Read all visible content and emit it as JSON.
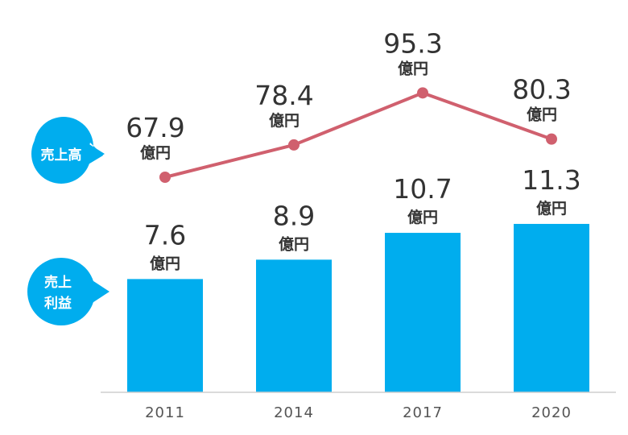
{
  "chart_data": {
    "type": "bar+line",
    "categories": [
      "2011",
      "2014",
      "2017",
      "2020"
    ],
    "unit": "億円",
    "series": [
      {
        "name": "売上高",
        "type": "line",
        "color": "#d0606e",
        "values": [
          67.9,
          78.4,
          95.3,
          80.3
        ],
        "labels": [
          "67.9",
          "78.4",
          "95.3",
          "80.3"
        ]
      },
      {
        "name": "売上利益",
        "name_lines": [
          "売上",
          "利益"
        ],
        "type": "bar",
        "color": "#00adee",
        "values": [
          7.6,
          8.9,
          10.7,
          11.3
        ],
        "labels": [
          "7.6",
          "8.9",
          "10.7",
          "11.3"
        ]
      }
    ],
    "legend": "left-callouts",
    "grid": false
  }
}
